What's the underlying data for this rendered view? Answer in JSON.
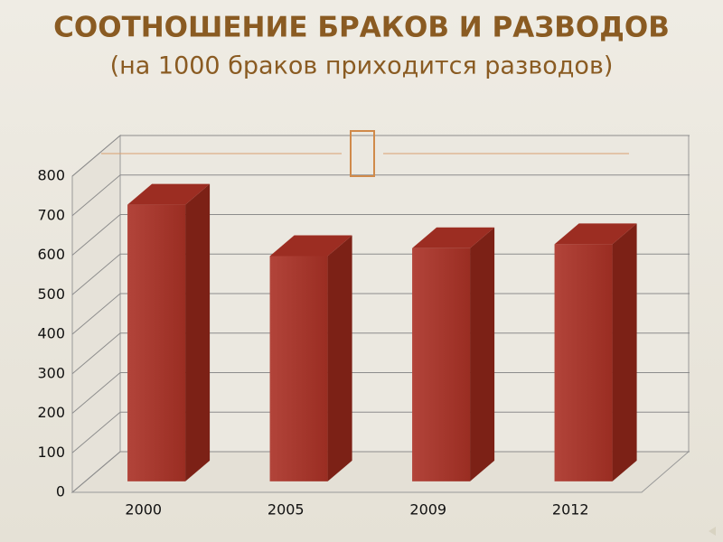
{
  "chart_data": {
    "type": "bar3d",
    "title": "СООТНОШЕНИЕ БРАКОВ И РАЗВОДОВ",
    "subtitle": "(на 1000 браков приходится разводов)",
    "categories": [
      "2000",
      "2005",
      "2009",
      "2012"
    ],
    "values": [
      700,
      570,
      590,
      600
    ],
    "color": "#a3362b",
    "ylim": [
      0,
      800
    ],
    "yticks": [
      0,
      100,
      200,
      300,
      400,
      500,
      600,
      700,
      800
    ],
    "grid": true
  }
}
